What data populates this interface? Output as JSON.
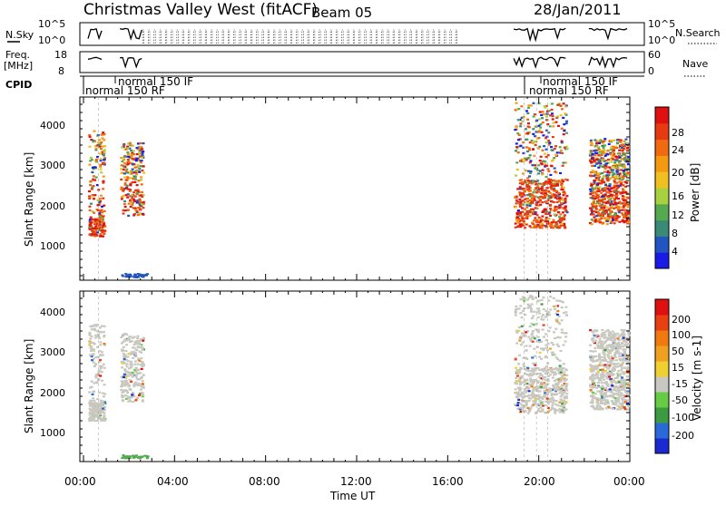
{
  "header": {
    "station": "Christmas Valley West (fitACF)",
    "beam": "Beam 05",
    "date": "28/Jan/2011"
  },
  "strips": {
    "nsky_label": "N.Sky",
    "nsky_ticks": [
      "10^5",
      "10^0"
    ],
    "nsearch_label": "N.Search",
    "nsearch_ticks": [
      "10^5",
      "10^0"
    ],
    "freq_label": "Freq.",
    "freq_unit": "[MHz]",
    "freq_ticks": [
      "18",
      "8"
    ],
    "nave_label": "Nave",
    "nave_ticks": [
      "60",
      "0"
    ],
    "cpid_label": "CPID",
    "cpid_modes": [
      {
        "text": "normal 150 RF"
      },
      {
        "text": "normal 150 IF"
      },
      {
        "text": "normal 150 IF"
      },
      {
        "text": "normal 150 RF"
      }
    ]
  },
  "chart_data": [
    {
      "type": "heatmap",
      "name": "power",
      "ylabel": "Slant Range [km]",
      "y_ticks": [
        "1000",
        "2000",
        "3000",
        "4000"
      ],
      "ylim": [
        100,
        4600
      ],
      "xlim": [
        0,
        24
      ],
      "colorbar_label": "Power [dB]",
      "colorbar_ticks": [
        "4",
        "8",
        "12",
        "16",
        "20",
        "24",
        "28"
      ],
      "colorbar_colors": [
        "#1a1ae6",
        "#2255c0",
        "#3a8a78",
        "#55aa50",
        "#a8d040",
        "#f0c020",
        "#f59a10",
        "#f26a10",
        "#e83a10",
        "#e01010"
      ],
      "echo_blocks_hours": [
        [
          0.2,
          0.9
        ],
        [
          1.6,
          2.6
        ],
        [
          18.9,
          21.2
        ],
        [
          22.2,
          23.9
        ]
      ]
    },
    {
      "type": "heatmap",
      "name": "velocity",
      "ylabel": "Slant Range [km]",
      "y_ticks": [
        "1000",
        "2000",
        "3000",
        "4000"
      ],
      "ylim": [
        100,
        4600
      ],
      "xlim": [
        0,
        24
      ],
      "colorbar_label": "Velocity [m s-1]",
      "colorbar_ticks": [
        "200",
        "100",
        "50",
        "15",
        "-15",
        "-50",
        "-100",
        "-200"
      ],
      "colorbar_colors": [
        "#1a2ad0",
        "#2a6ad8",
        "#3c9a40",
        "#66cc44",
        "#c8c8c0",
        "#f0d030",
        "#f0a020",
        "#f07a10",
        "#e84010",
        "#e01010"
      ],
      "echo_blocks_hours": [
        [
          0.2,
          0.9
        ],
        [
          1.6,
          2.6
        ],
        [
          18.9,
          21.2
        ],
        [
          22.2,
          23.9
        ]
      ]
    }
  ],
  "x_axis": {
    "label": "Time UT",
    "ticks": [
      "00:00",
      "04:00",
      "08:00",
      "12:00",
      "16:00",
      "20:00",
      "00:00"
    ]
  }
}
